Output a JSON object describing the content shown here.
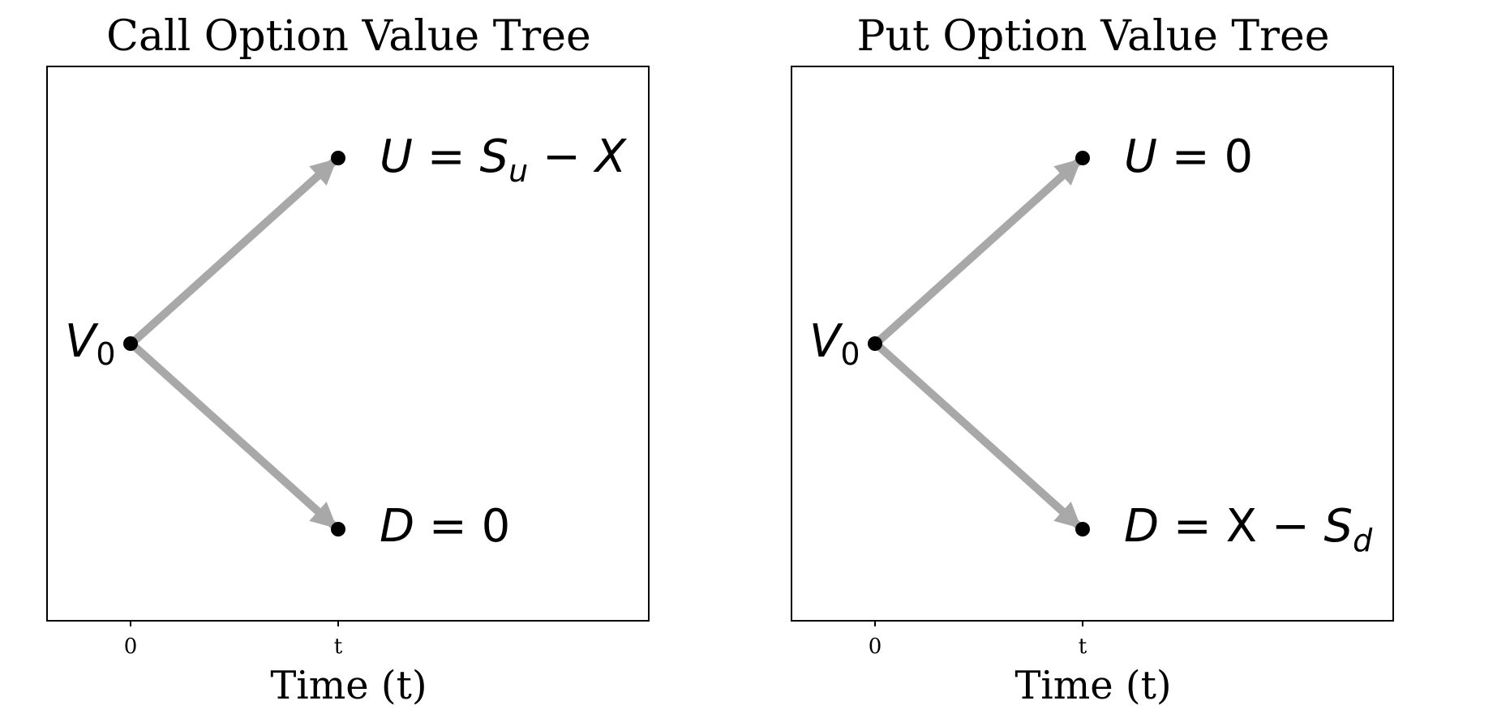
{
  "panels": [
    {
      "title": "Call Option Value Tree",
      "xlabel": "Time (t)",
      "xticks": [
        "0",
        "t"
      ],
      "nodes": {
        "root": {
          "var": "V",
          "sub": "0",
          "rest": ""
        },
        "up": {
          "var": "U",
          "rest": " = ",
          "sym": "S",
          "sub": "u",
          "tail": " − X"
        },
        "down": {
          "var": "D",
          "rest": " = 0"
        }
      }
    },
    {
      "title": "Put Option Value Tree",
      "xlabel": "Time (t)",
      "xticks": [
        "0",
        "t"
      ],
      "nodes": {
        "root": {
          "var": "V",
          "sub": "0",
          "rest": ""
        },
        "up": {
          "var": "U",
          "rest": " = 0"
        },
        "down": {
          "var": "D",
          "rest": " = X − ",
          "sym": "S",
          "sub": "d",
          "tail": ""
        }
      }
    }
  ],
  "colors": {
    "arrow": "#a8a8a8",
    "node": "#000000",
    "frame": "#000000"
  }
}
